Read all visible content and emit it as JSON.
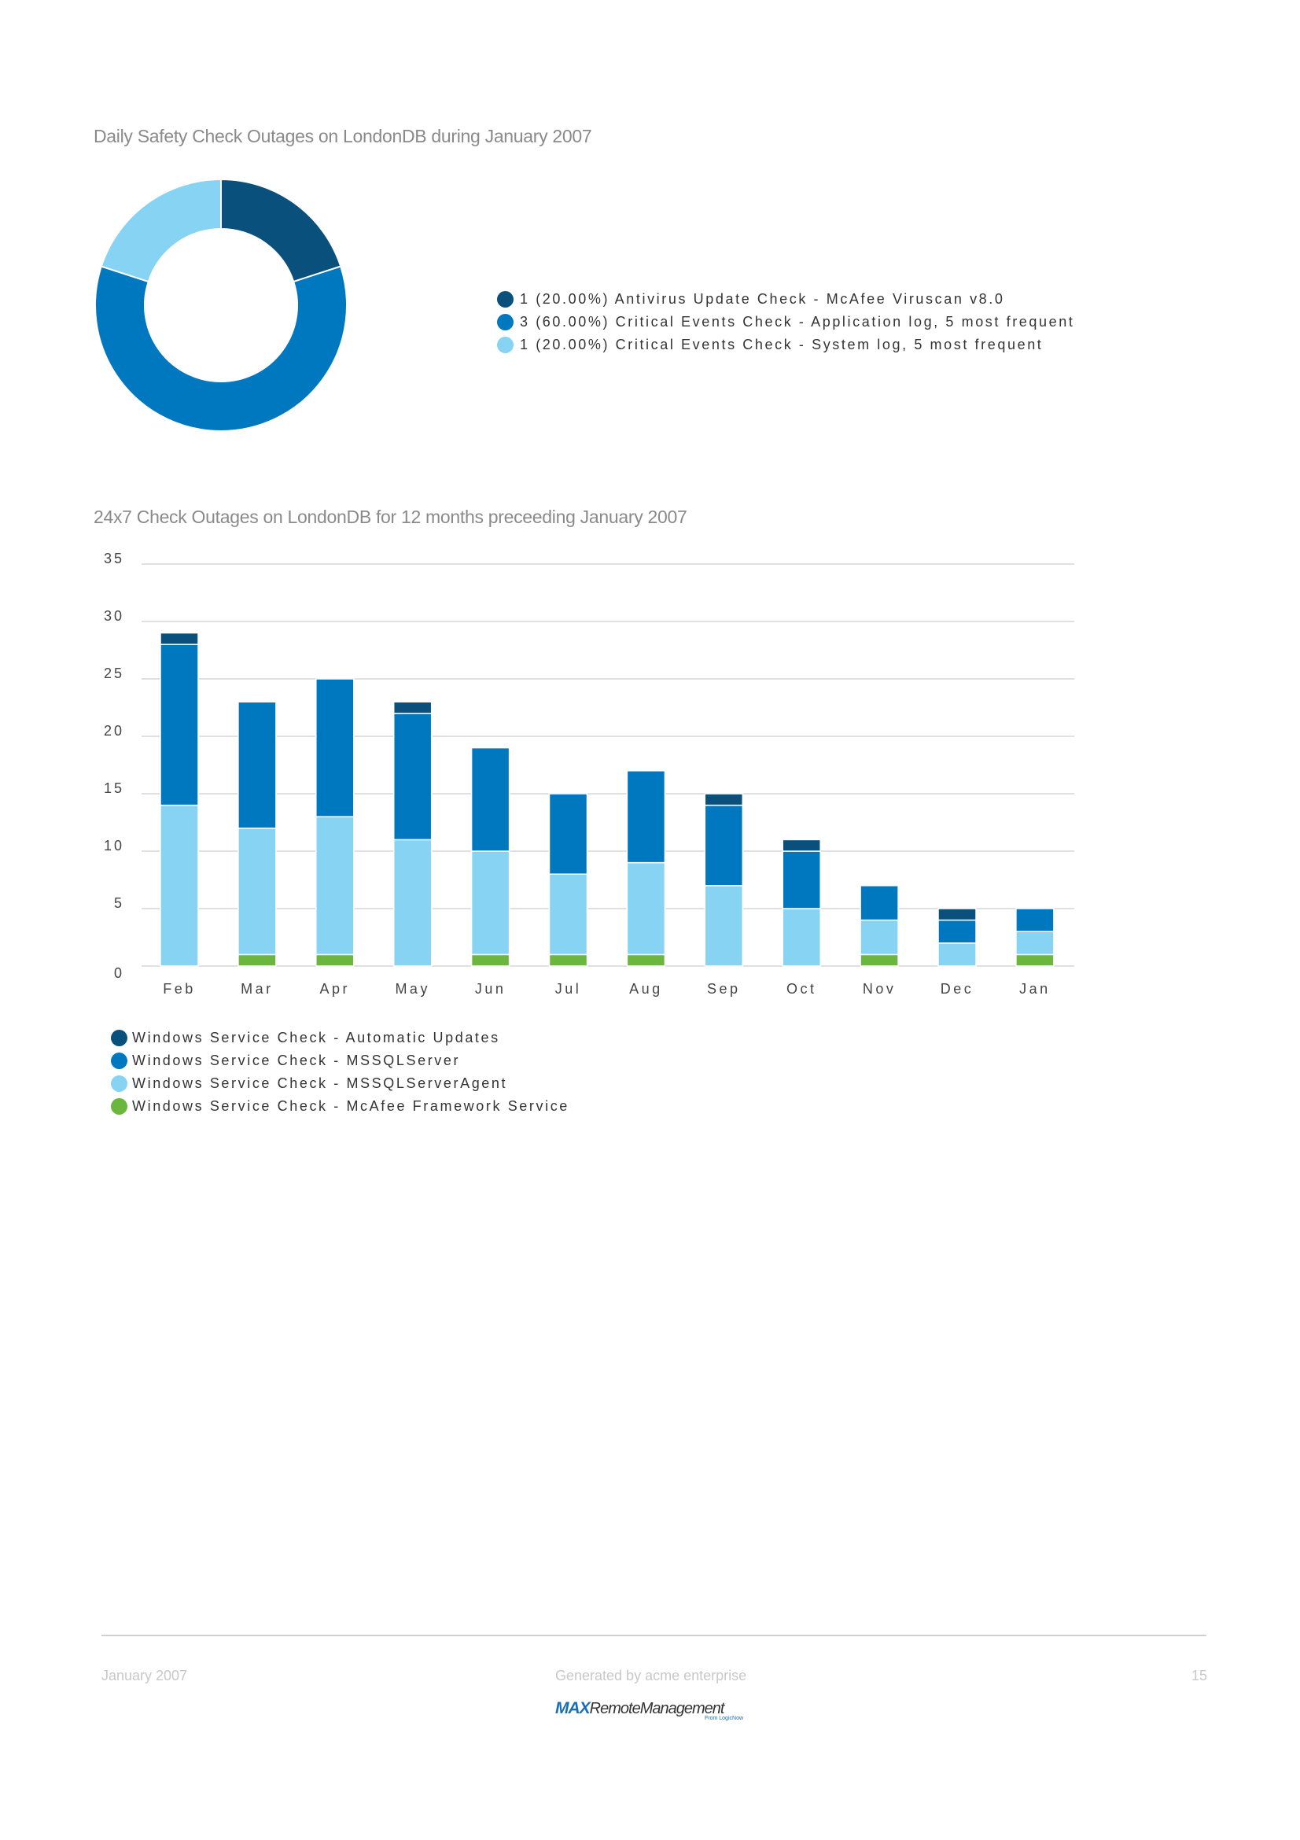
{
  "chart_data": [
    {
      "type": "pie",
      "variant": "donut",
      "title": "Daily Safety Check Outages on LondonDB during January 2007",
      "slices": [
        {
          "label": "1 (20.00%) Antivirus Update Check - McAfee Viruscan v8.0",
          "value": 1,
          "percent": 20.0,
          "color": "#0a507c"
        },
        {
          "label": "3 (60.00%) Critical Events Check - Application log, 5 most frequent",
          "value": 3,
          "percent": 60.0,
          "color": "#0078bf"
        },
        {
          "label": "1 (20.00%) Critical Events Check - System log, 5 most frequent",
          "value": 1,
          "percent": 20.0,
          "color": "#86d3f3"
        }
      ],
      "legend_placement": "right"
    },
    {
      "type": "bar",
      "stacked": true,
      "title": "24x7 Check Outages on LondonDB for 12 months preceeding January 2007",
      "categories": [
        "Feb",
        "Mar",
        "Apr",
        "May",
        "Jun",
        "Jul",
        "Aug",
        "Sep",
        "Oct",
        "Nov",
        "Dec",
        "Jan"
      ],
      "yticks": [
        "0",
        "5",
        "10",
        "15",
        "20",
        "25",
        "30",
        "35"
      ],
      "ylim": [
        0,
        35
      ],
      "grid": true,
      "series": [
        {
          "name": "Windows Service Check - McAfee Framework Service",
          "color": "#6bb63f",
          "values": [
            0,
            1,
            1,
            0,
            1,
            1,
            1,
            0,
            0,
            1,
            0,
            1
          ]
        },
        {
          "name": "Windows Service Check - MSSQLServerAgent",
          "color": "#86d3f3",
          "values": [
            14,
            11,
            12,
            11,
            9,
            7,
            8,
            7,
            5,
            3,
            2,
            2
          ]
        },
        {
          "name": "Windows Service Check - MSSQLServer",
          "color": "#0078bf",
          "values": [
            14,
            11,
            12,
            11,
            9,
            7,
            8,
            7,
            5,
            3,
            2,
            2
          ]
        },
        {
          "name": "Windows Service Check - Automatic Updates",
          "color": "#0a507c",
          "values": [
            1,
            0,
            0,
            1,
            0,
            0,
            0,
            1,
            1,
            0,
            1,
            0
          ]
        }
      ],
      "legend_order": [
        3,
        2,
        1,
        0
      ],
      "legend_placement": "bottom-left"
    }
  ],
  "footer": {
    "date": "January 2007",
    "generated": "Generated by acme enterprise",
    "page": "15"
  },
  "logo": {
    "brand": "MAX",
    "name": "RemoteManagement",
    "tagline": "From LogicNow"
  }
}
